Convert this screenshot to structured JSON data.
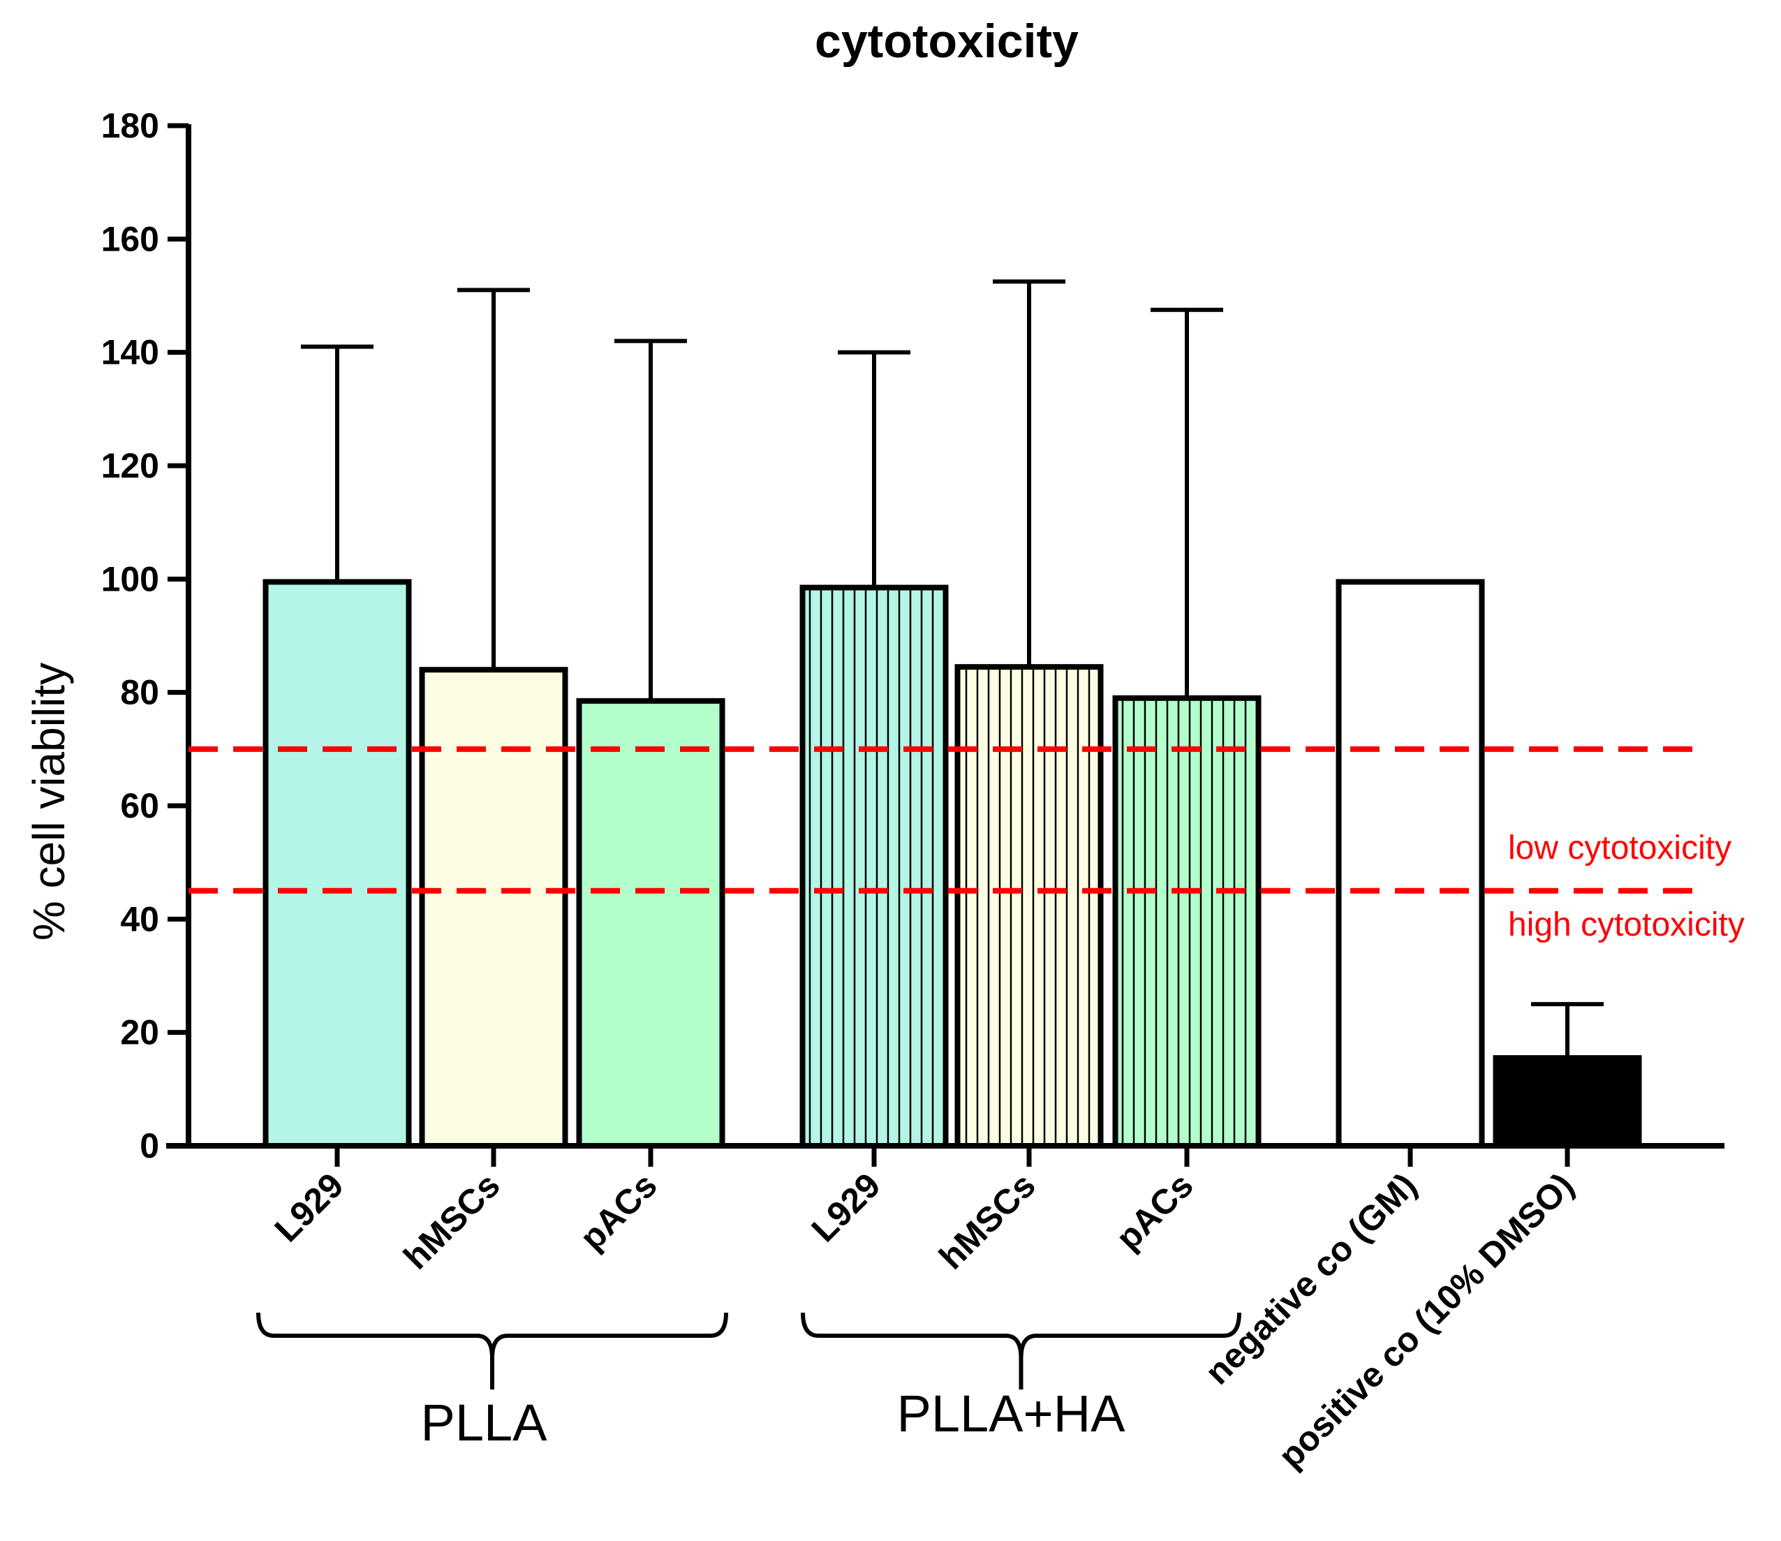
{
  "chart_data": {
    "type": "bar",
    "title": "cytotoxicity",
    "xlabel": "",
    "ylabel": "% cell viability",
    "ylim": [
      0,
      180
    ],
    "yticks": [
      0,
      20,
      40,
      60,
      80,
      100,
      120,
      140,
      160,
      180
    ],
    "categories": [
      "L929",
      "hMSCs",
      "pACs",
      "L929",
      "hMSCs",
      "pACs",
      "negative co (GM)",
      "positive co (10% DMSO)"
    ],
    "values": [
      99.5,
      84,
      78.5,
      98.5,
      84.5,
      79,
      99.5,
      15.5
    ],
    "errors": [
      41.5,
      67,
      63.5,
      41.5,
      68,
      68.5,
      0,
      9.5
    ],
    "bar_colors": [
      "#b3f5e6",
      "#fdfde3",
      "#b3ffcc",
      "#b3f5e6",
      "#fdfde3",
      "#b3ffcc",
      "#ffffff",
      "#000000"
    ],
    "hatched": [
      false,
      false,
      false,
      true,
      true,
      true,
      false,
      false
    ],
    "groups": [
      {
        "label": "PLLA",
        "members": [
          0,
          1,
          2
        ]
      },
      {
        "label": "PLLA+HA",
        "members": [
          3,
          4,
          5
        ]
      }
    ],
    "thresholds": [
      {
        "value": 70,
        "color": "#ff0000",
        "style": "dashed"
      },
      {
        "value": 45,
        "color": "#ff0000",
        "style": "dashed"
      }
    ],
    "annotations": [
      "low cytotoxicity",
      "high cytotoxicity"
    ]
  }
}
